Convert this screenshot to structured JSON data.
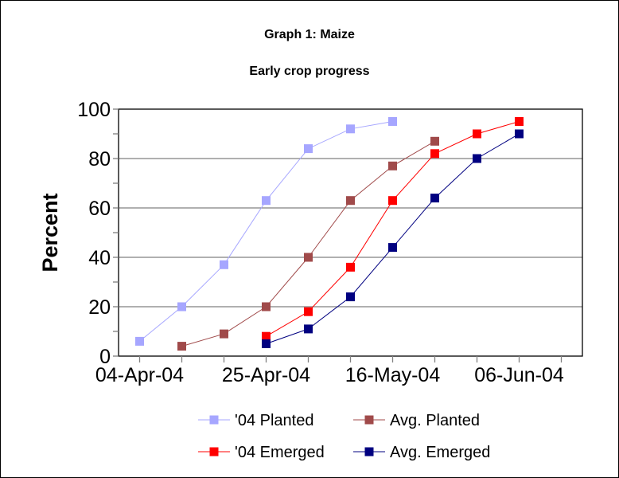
{
  "chart_data": {
    "type": "line",
    "title": "Graph 1: Maize",
    "subtitle": "Early crop progress",
    "xlabel": "",
    "ylabel": "Percent",
    "categories": [
      "04-Apr-04",
      "11-Apr-04",
      "18-Apr-04",
      "25-Apr-04",
      "02-May-04",
      "09-May-04",
      "16-May-04",
      "23-May-04",
      "30-May-04",
      "06-Jun-04",
      "13-Jun-04"
    ],
    "x_tick_labels": [
      "04-Apr-04",
      "25-Apr-04",
      "16-May-04",
      "06-Jun-04"
    ],
    "ylim": [
      0,
      100
    ],
    "y_ticks": [
      0,
      20,
      40,
      60,
      80,
      100
    ],
    "grid": "horizontal major",
    "legend": "bottom",
    "series": [
      {
        "name": "'04 Planted",
        "color": "#a6a6ff",
        "values": [
          6,
          20,
          37,
          63,
          84,
          92,
          95,
          null,
          null,
          null,
          null
        ]
      },
      {
        "name": "Avg. Planted",
        "color": "#a04a4a",
        "values": [
          null,
          4,
          9,
          20,
          40,
          63,
          77,
          87,
          null,
          null,
          null
        ]
      },
      {
        "name": "'04 Emerged",
        "color": "#ff0000",
        "values": [
          null,
          null,
          null,
          8,
          18,
          36,
          63,
          82,
          90,
          95,
          null
        ]
      },
      {
        "name": "Avg. Emerged",
        "color": "#000080",
        "values": [
          null,
          null,
          null,
          5,
          11,
          24,
          44,
          64,
          80,
          90,
          null
        ]
      }
    ]
  }
}
